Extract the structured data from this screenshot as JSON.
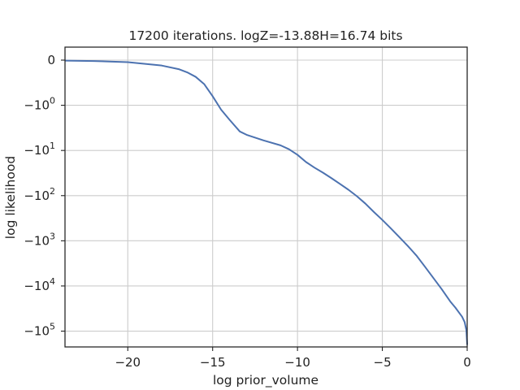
{
  "chart_data": {
    "type": "line",
    "title": "17200 iterations. logZ=-13.88H=16.74 bits",
    "xlabel": "log prior_volume",
    "ylabel": "log likelihood",
    "xlim": [
      -23.7,
      0
    ],
    "yscale": "symlog",
    "x_ticks": [
      {
        "value": -20,
        "label": "−20"
      },
      {
        "value": -15,
        "label": "−15"
      },
      {
        "value": -10,
        "label": "−10"
      },
      {
        "value": -5,
        "label": "−5"
      },
      {
        "value": 0,
        "label": "0"
      }
    ],
    "y_ticks": [
      {
        "value": 0,
        "base": "0",
        "exp": ""
      },
      {
        "value": -1,
        "base": "−10",
        "exp": "0"
      },
      {
        "value": -10,
        "base": "−10",
        "exp": "1"
      },
      {
        "value": -100,
        "base": "−10",
        "exp": "2"
      },
      {
        "value": -1000,
        "base": "−10",
        "exp": "3"
      },
      {
        "value": -10000,
        "base": "−10",
        "exp": "4"
      },
      {
        "value": -100000,
        "base": "−10",
        "exp": "5"
      }
    ],
    "grid": true,
    "series": [
      {
        "color": "#4c72b0",
        "x": [
          -23.7,
          -22.0,
          -20.0,
          -18.0,
          -17.0,
          -16.5,
          -16.0,
          -15.5,
          -15.0,
          -14.5,
          -14.0,
          -13.4,
          -13.0,
          -12.0,
          -11.0,
          -10.5,
          -10.0,
          -9.5,
          -9.0,
          -8.5,
          -8.0,
          -7.5,
          -7.0,
          -6.5,
          -6.0,
          -5.5,
          -5.0,
          -4.5,
          -4.0,
          -3.5,
          -3.0,
          -2.5,
          -2.0,
          -1.5,
          -1.0,
          -0.7,
          -0.5,
          -0.3,
          -0.15,
          -0.05,
          0.0
        ],
        "y": [
          -0.012,
          -0.02,
          -0.045,
          -0.12,
          -0.2,
          -0.27,
          -0.37,
          -0.53,
          -0.8,
          -1.25,
          -2.1,
          -3.8,
          -4.5,
          -6.0,
          -7.7,
          -9.4,
          -12.5,
          -18,
          -24,
          -31,
          -41,
          -55,
          -74,
          -103,
          -150,
          -230,
          -345,
          -530,
          -830,
          -1300,
          -2100,
          -3700,
          -6600,
          -11800,
          -22000,
          -30000,
          -38000,
          -48000,
          -63000,
          -95000,
          -200000
        ]
      }
    ]
  }
}
